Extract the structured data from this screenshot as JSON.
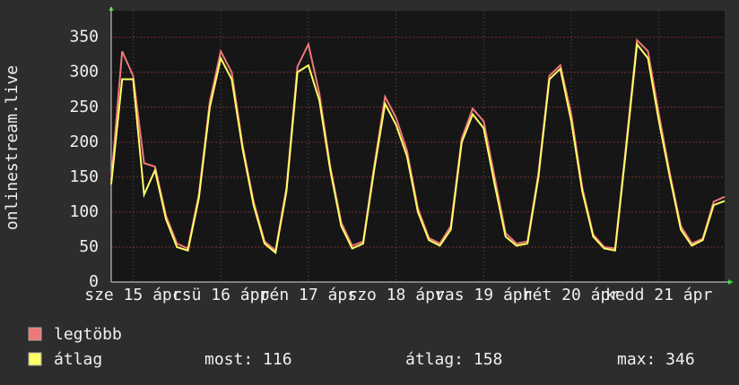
{
  "chart_data": {
    "type": "line",
    "y_label": "onlinestream.live",
    "x": [
      0,
      3,
      6,
      9,
      12,
      15,
      18,
      21,
      24,
      27,
      30,
      33,
      36,
      39,
      42,
      45,
      48,
      51,
      54,
      57,
      60,
      63,
      66,
      69,
      72,
      75,
      78,
      81,
      84,
      87,
      90,
      93,
      96,
      99,
      102,
      105,
      108,
      111,
      114,
      117,
      120,
      123,
      126,
      129,
      132,
      135,
      138,
      141,
      144,
      147,
      150,
      153,
      156,
      159,
      162,
      165,
      168
    ],
    "xlim": [
      0,
      168
    ],
    "xticks": [
      {
        "value": 6,
        "label": "sze 15 ápr"
      },
      {
        "value": 30,
        "label": "csü 16 ápr"
      },
      {
        "value": 54,
        "label": "pén 17 ápr"
      },
      {
        "value": 78,
        "label": "szo 18 ápr"
      },
      {
        "value": 102,
        "label": "vas 19 ápr"
      },
      {
        "value": 126,
        "label": "hét 20 ápr"
      },
      {
        "value": 150,
        "label": "kedd 21 ápr"
      }
    ],
    "ylim": [
      0,
      388
    ],
    "yticks": [
      0,
      50,
      100,
      150,
      200,
      250,
      300,
      350
    ],
    "grid": true,
    "series": [
      {
        "name": "legtöbb",
        "color": "#f07878",
        "values": [
          145,
          330,
          295,
          170,
          165,
          95,
          55,
          48,
          125,
          258,
          330,
          300,
          195,
          115,
          58,
          45,
          135,
          308,
          340,
          270,
          165,
          85,
          52,
          58,
          165,
          265,
          235,
          188,
          105,
          63,
          55,
          80,
          205,
          248,
          230,
          150,
          70,
          55,
          58,
          155,
          295,
          310,
          240,
          135,
          68,
          50,
          48,
          195,
          346,
          330,
          240,
          155,
          80,
          55,
          62,
          115,
          122
        ]
      },
      {
        "name": "átlag",
        "color": "#ffff66",
        "values": [
          140,
          290,
          290,
          125,
          160,
          90,
          50,
          45,
          120,
          250,
          320,
          290,
          190,
          110,
          55,
          42,
          130,
          300,
          310,
          260,
          160,
          80,
          48,
          55,
          160,
          255,
          225,
          180,
          100,
          60,
          52,
          75,
          200,
          240,
          220,
          140,
          65,
          52,
          55,
          150,
          290,
          305,
          230,
          130,
          65,
          48,
          45,
          190,
          340,
          320,
          230,
          150,
          75,
          52,
          60,
          110,
          116
        ]
      }
    ],
    "stats": [
      "most: 116",
      "átlag: 158",
      "max: 346"
    ]
  }
}
